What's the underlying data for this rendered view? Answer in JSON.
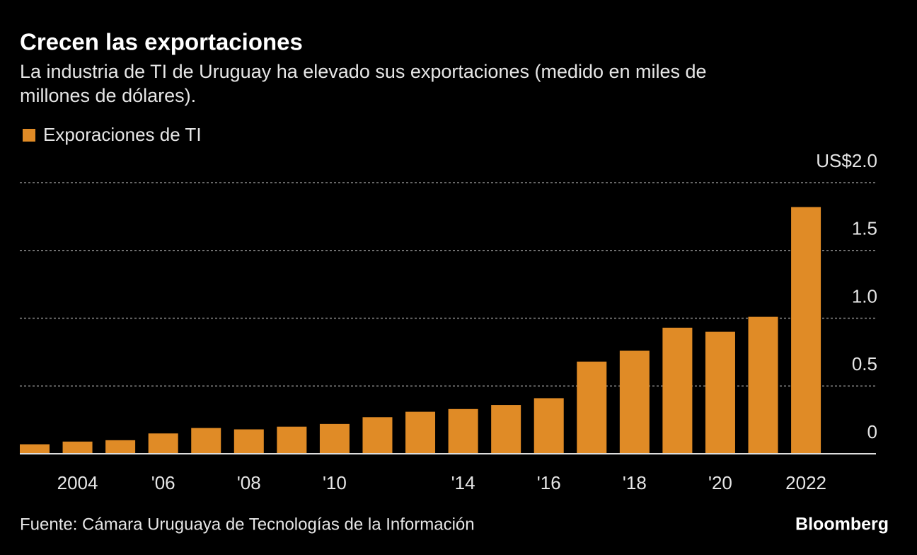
{
  "chart_data": {
    "type": "bar",
    "title": "Crecen las exportaciones",
    "subtitle": "La industria de TI de Uruguay ha elevado sus exportaciones (medido en miles de millones de dólares).",
    "series": [
      {
        "name": "Exporaciones de TI",
        "color": "#e08b26",
        "values": [
          0.07,
          0.09,
          0.1,
          0.15,
          0.19,
          0.18,
          0.2,
          0.22,
          0.27,
          0.31,
          0.33,
          0.36,
          0.41,
          0.68,
          0.76,
          0.93,
          0.9,
          1.01,
          1.82
        ]
      }
    ],
    "categories": [
      null,
      "2004",
      null,
      "'06",
      null,
      "'08",
      null,
      "'10",
      null,
      null,
      "'14",
      null,
      "'16",
      null,
      "'18",
      null,
      "'20",
      null,
      "2022"
    ],
    "ylim": [
      0,
      2
    ],
    "yticks": [
      0,
      0.5,
      {
        "value": 1,
        "label": "1.0"
      },
      1.5,
      {
        "value": 2,
        "label": "US$2.0"
      }
    ],
    "grid": true,
    "source": "Fuente: Cámara Uruguaya de Tecnologías de la Información",
    "brand": "Bloomberg"
  }
}
